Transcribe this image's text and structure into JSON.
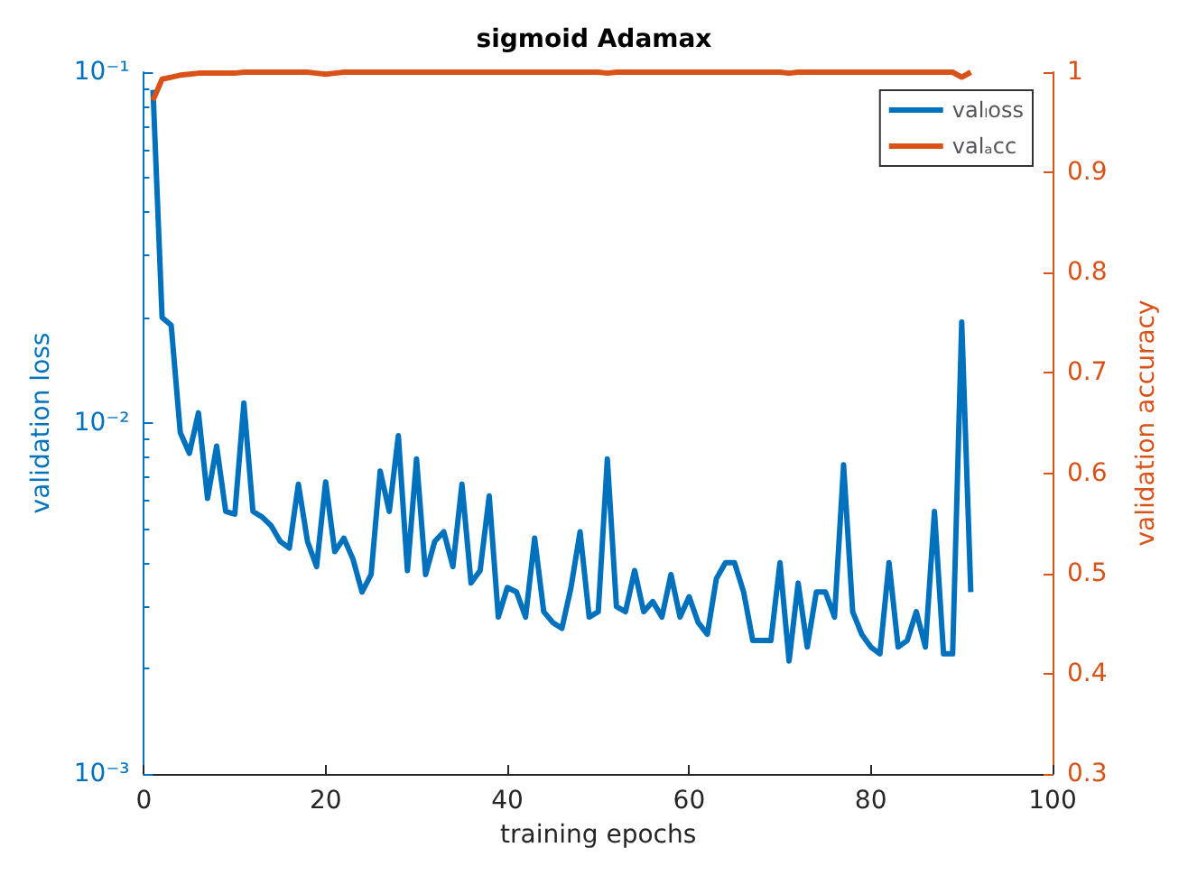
{
  "chart_data": {
    "type": "line",
    "title": "sigmoid Adamax",
    "xlabel": "training epochs",
    "ylabel": "validation loss",
    "y2label": "validation accuracy",
    "x": [
      1,
      2,
      3,
      4,
      5,
      6,
      7,
      8,
      9,
      10,
      11,
      12,
      13,
      14,
      15,
      16,
      17,
      18,
      19,
      20,
      21,
      22,
      23,
      24,
      25,
      26,
      27,
      28,
      29,
      30,
      31,
      32,
      33,
      34,
      35,
      36,
      37,
      38,
      39,
      40,
      41,
      42,
      43,
      44,
      45,
      46,
      47,
      48,
      49,
      50,
      51,
      52,
      53,
      54,
      55,
      56,
      57,
      58,
      59,
      60,
      61,
      62,
      63,
      64,
      65,
      66,
      67,
      68,
      69,
      70,
      71,
      72,
      73,
      74,
      75,
      76,
      77,
      78,
      79,
      80,
      81,
      82,
      83,
      84,
      85,
      86,
      87,
      88,
      89,
      90,
      91
    ],
    "series": [
      {
        "name": "valₗoss",
        "color": "#0072bd",
        "values": [
          0.089,
          0.02,
          0.019,
          0.0094,
          0.0082,
          0.0107,
          0.0061,
          0.0086,
          0.0056,
          0.0055,
          0.0114,
          0.0056,
          0.0054,
          0.0051,
          0.0046,
          0.0044,
          0.0067,
          0.0046,
          0.0039,
          0.0068,
          0.0043,
          0.0047,
          0.0041,
          0.0033,
          0.0037,
          0.0073,
          0.0056,
          0.0092,
          0.0038,
          0.0079,
          0.0037,
          0.0046,
          0.0049,
          0.0039,
          0.0067,
          0.0035,
          0.0038,
          0.0062,
          0.0028,
          0.0034,
          0.0033,
          0.0028,
          0.0047,
          0.0029,
          0.0027,
          0.0026,
          0.0034,
          0.0049,
          0.0028,
          0.0029,
          0.0079,
          0.003,
          0.0029,
          0.0038,
          0.0029,
          0.0031,
          0.0028,
          0.0037,
          0.0028,
          0.0032,
          0.0027,
          0.0025,
          0.0036,
          0.004,
          0.004,
          0.0033,
          0.0024,
          0.0024,
          0.0024,
          0.004,
          0.0021,
          0.0035,
          0.0023,
          0.0033,
          0.0033,
          0.0028,
          0.0076,
          0.0029,
          0.0025,
          0.0023,
          0.0022,
          0.004,
          0.0023,
          0.0024,
          0.0029,
          0.0023,
          0.0056,
          0.0022,
          0.0022,
          0.0194,
          0.0033
        ]
      },
      {
        "name": "valₐcc",
        "color": "#d95319",
        "axis": "y2",
        "values": [
          0.972,
          0.993,
          0.995,
          0.997,
          0.998,
          0.999,
          0.999,
          0.999,
          0.999,
          0.999,
          1,
          1,
          1,
          1,
          1,
          1,
          1,
          1,
          0.999,
          0.998,
          0.999,
          1,
          1,
          1,
          1,
          1,
          1,
          1,
          1,
          1,
          1,
          1,
          1,
          1,
          1,
          1,
          1,
          1,
          1,
          1,
          1,
          1,
          1,
          1,
          1,
          1,
          1,
          1,
          1,
          1,
          0.999,
          1,
          1,
          1,
          1,
          1,
          1,
          1,
          1,
          1,
          1,
          1,
          1,
          1,
          1,
          1,
          1,
          1,
          1,
          1,
          0.999,
          1,
          1,
          1,
          1,
          1,
          1,
          1,
          1,
          1,
          1,
          1,
          1,
          1,
          1,
          1,
          1,
          1,
          1,
          0.995,
          1
        ]
      }
    ],
    "xlim": [
      0,
      100
    ],
    "xticks": [
      0,
      20,
      40,
      60,
      80,
      100
    ],
    "log": "y",
    "ylim": [
      0.001,
      0.1
    ],
    "yticks": [
      {
        "value": 0.001,
        "label": "10⁻³"
      },
      {
        "value": 0.01,
        "label": "10⁻²"
      },
      {
        "value": 0.1,
        "label": "10⁻¹"
      }
    ],
    "y2lim": [
      0.3,
      1
    ],
    "y2ticks": [
      0.3,
      0.4,
      0.5,
      0.6,
      0.7,
      0.8,
      0.9,
      1
    ],
    "legend": "top right",
    "marker": "none",
    "line_style": "solid"
  }
}
